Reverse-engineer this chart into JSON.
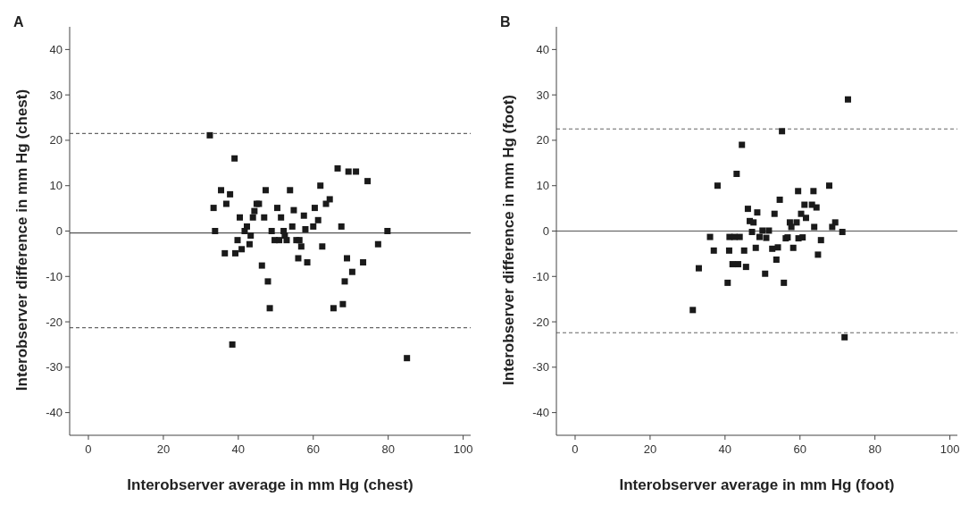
{
  "chart_data": [
    {
      "type": "scatter",
      "title": "A",
      "xlabel": "Interobserver average in mm Hg (chest)",
      "ylabel": "Interobserver difference in mm Hg (chest)",
      "xlim": [
        -5,
        102
      ],
      "ylim": [
        -45,
        45
      ],
      "xticks": [
        0,
        20,
        40,
        60,
        80,
        100
      ],
      "yticks": [
        -40,
        -30,
        -20,
        -10,
        0,
        10,
        20,
        30,
        40
      ],
      "grid": false,
      "marker": "square",
      "series": [
        {
          "color": "#1a1a1a",
          "x": [
            32.4,
            39.0,
            35.4,
            37.8,
            33.4,
            36.8,
            33.8,
            36.4,
            39.2,
            39.8,
            40.4,
            40.9,
            41.7,
            42.3,
            43.3,
            43.0,
            43.9,
            44.3,
            44.9,
            45.5,
            46.3,
            46.9,
            47.3,
            47.9,
            48.4,
            48.9,
            49.7,
            50.4,
            50.9,
            51.4,
            52.1,
            52.4,
            52.9,
            53.8,
            54.4,
            54.8,
            55.5,
            56.3,
            56.0,
            56.8,
            57.5,
            57.9,
            58.4,
            60.0,
            60.4,
            61.3,
            61.9,
            62.4,
            63.4,
            64.4,
            65.4,
            66.5,
            67.5,
            67.9,
            68.4,
            69.0,
            69.4,
            70.4,
            71.4,
            73.3,
            74.5,
            77.3,
            79.8,
            38.4,
            85.0
          ],
          "values": [
            21.1,
            16.0,
            9.0,
            8.1,
            5.1,
            6.0,
            0,
            -4.9,
            -4.9,
            -2.0,
            3.0,
            -4.0,
            0,
            1.0,
            -1.0,
            -2.9,
            3.0,
            4.4,
            6.0,
            6.0,
            -7.6,
            3.0,
            9.0,
            -11.1,
            -17.0,
            0,
            -2.0,
            5.1,
            -2.0,
            3.0,
            0,
            -1.0,
            -2.0,
            9.0,
            1.0,
            4.6,
            -2.0,
            -2.0,
            -6.0,
            -3.4,
            3.4,
            0.4,
            -6.9,
            1.0,
            5.1,
            2.4,
            10.0,
            -3.4,
            6.0,
            7.0,
            -17.0,
            13.8,
            1.0,
            -16.1,
            -11.1,
            -6.0,
            13.1,
            -9.0,
            13.1,
            -6.9,
            11.0,
            -2.9,
            0,
            -25.0,
            -28.0
          ]
        }
      ],
      "ref_lines": [
        {
          "axis": "y",
          "value": -0.4,
          "color": "#555555",
          "line_style": "solid"
        },
        {
          "axis": "y",
          "value": 21.5,
          "color": "#666666",
          "line_style": "dashed"
        },
        {
          "axis": "y",
          "value": -21.3,
          "color": "#666666",
          "line_style": "dashed"
        }
      ]
    },
    {
      "type": "scatter",
      "title": "B",
      "xlabel": "Interobserver average in mm Hg (foot)",
      "ylabel": "Interobserver difference in mm Hg (foot)",
      "xlim": [
        -5,
        102
      ],
      "ylim": [
        -45,
        45
      ],
      "xticks": [
        0,
        20,
        40,
        60,
        80,
        100
      ],
      "yticks": [
        -40,
        -30,
        -20,
        -10,
        0,
        10,
        20,
        30,
        40
      ],
      "grid": false,
      "marker": "square",
      "series": [
        {
          "color": "#1a1a1a",
          "x": [
            72.8,
            71.9,
            55.2,
            44.5,
            43.1,
            38.0,
            67.8,
            59.5,
            63.6,
            54.6,
            61.2,
            63.2,
            64.4,
            46.1,
            48.6,
            53.2,
            60.3,
            61.6,
            46.6,
            47.6,
            57.3,
            59.1,
            69.4,
            57.7,
            63.8,
            68.6,
            47.2,
            50.0,
            51.7,
            71.3,
            36.0,
            41.2,
            42.5,
            43.9,
            49.2,
            51.0,
            56.2,
            56.7,
            59.6,
            60.7,
            65.6,
            37.0,
            41.1,
            45.1,
            48.2,
            52.6,
            54.1,
            58.2,
            64.8,
            53.7,
            42.0,
            43.5,
            45.6,
            33.0,
            50.7,
            40.7,
            55.7,
            31.4
          ],
          "values": [
            29.0,
            -23.4,
            22.0,
            19.0,
            12.6,
            10.0,
            10.0,
            8.8,
            8.8,
            6.9,
            5.8,
            5.8,
            5.2,
            4.9,
            4.1,
            3.8,
            3.8,
            2.9,
            2.2,
            1.9,
            1.9,
            1.9,
            1.9,
            0.9,
            0.9,
            0.9,
            -0.2,
            0.1,
            0.1,
            -0.2,
            -1.3,
            -1.3,
            -1.3,
            -1.3,
            -1.3,
            -1.5,
            -1.6,
            -1.4,
            -1.6,
            -1.4,
            -2.0,
            -4.3,
            -4.3,
            -4.3,
            -3.7,
            -3.9,
            -3.6,
            -3.7,
            -5.2,
            -6.3,
            -7.3,
            -7.3,
            -7.9,
            -8.2,
            -9.4,
            -11.4,
            -11.4,
            -17.4
          ]
        }
      ],
      "ref_lines": [
        {
          "axis": "y",
          "value": 0,
          "color": "#555555",
          "line_style": "solid"
        },
        {
          "axis": "y",
          "value": 22.5,
          "color": "#666666",
          "line_style": "dashed"
        },
        {
          "axis": "y",
          "value": -22.4,
          "color": "#666666",
          "line_style": "dashed"
        }
      ]
    }
  ]
}
